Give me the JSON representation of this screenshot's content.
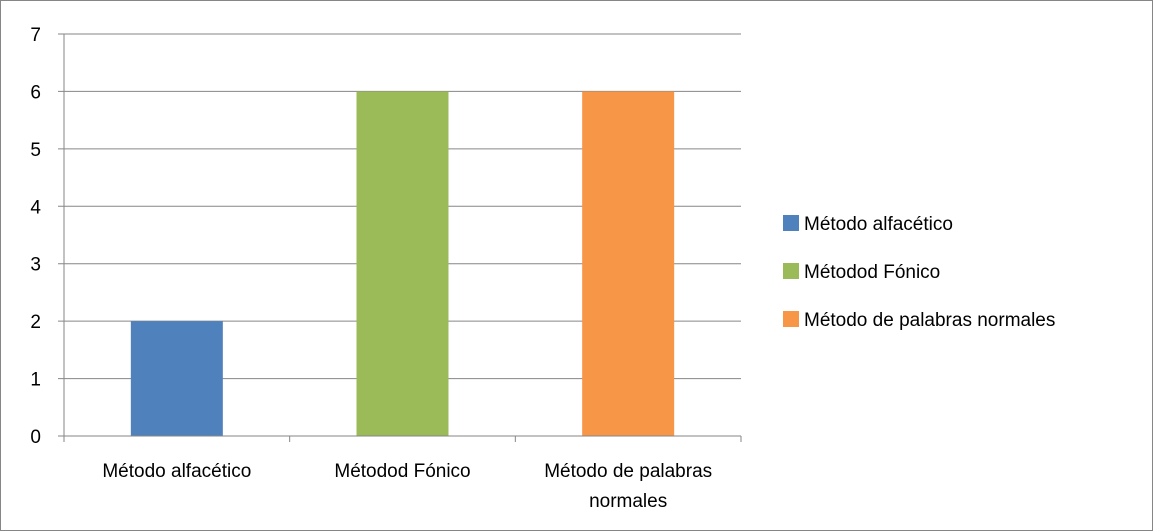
{
  "chart_data": {
    "type": "bar",
    "categories": [
      "Método alfacético",
      "Métodod Fónico",
      "Método de palabras normales"
    ],
    "category_label_lines": [
      [
        "Método alfacético"
      ],
      [
        "Métodod Fónico"
      ],
      [
        "Método de palabras",
        "normales"
      ]
    ],
    "values": [
      2,
      6,
      6
    ],
    "ylim": [
      0,
      7
    ],
    "yticks": [
      0,
      1,
      2,
      3,
      4,
      5,
      6,
      7
    ],
    "grid": true,
    "legend_position": "right",
    "legend": [
      {
        "label": "Método alfacético",
        "color": "#4F81BD"
      },
      {
        "label": "Métodod Fónico",
        "color": "#9BBB59"
      },
      {
        "label": "Método de palabras normales",
        "color": "#F79646"
      }
    ],
    "title": "",
    "xlabel": "",
    "ylabel": ""
  }
}
